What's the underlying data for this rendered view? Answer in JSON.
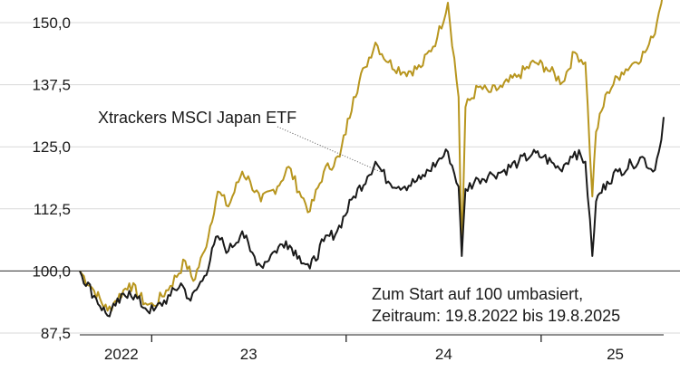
{
  "chart_data": {
    "type": "line",
    "title": "",
    "xlabel": "",
    "ylabel": "",
    "ylim": [
      87.5,
      152.0
    ],
    "xlim": [
      "2022-08-19",
      "2025-08-19"
    ],
    "y_ticks": [
      "150,0",
      "137,5",
      "125,0",
      "112,5",
      "100,0",
      "87,5"
    ],
    "x_ticks": [
      "2022",
      "23",
      "24",
      "25"
    ],
    "baseline": 100,
    "grid": "horizontal",
    "annotations": {
      "series_label": "Xtrackers MSCI Japan ETF",
      "note_line1": "Zum Start auf 100 umbasiert,",
      "note_line2": "Zeitraum: 19.8.2022 bis 19.8.2025"
    },
    "series": [
      {
        "name": "Xtrackers MSCI Japan ETF",
        "color": "#1a1a1a",
        "x": [
          "2022-08-19",
          "2022-09-15",
          "2022-10-10",
          "2022-10-25",
          "2022-11-20",
          "2022-12-20",
          "2023-01-05",
          "2023-02-05",
          "2023-02-25",
          "2023-03-15",
          "2023-04-10",
          "2023-05-05",
          "2023-05-25",
          "2023-06-20",
          "2023-07-05",
          "2023-07-25",
          "2023-08-20",
          "2023-09-10",
          "2023-10-05",
          "2023-10-25",
          "2023-11-20",
          "2023-12-15",
          "2024-01-15",
          "2024-02-10",
          "2024-02-25",
          "2024-03-20",
          "2024-04-20",
          "2024-05-20",
          "2024-06-20",
          "2024-07-10",
          "2024-07-30",
          "2024-08-05",
          "2024-08-12",
          "2024-09-05",
          "2024-10-01",
          "2024-10-20",
          "2024-11-20",
          "2024-12-15",
          "2025-01-05",
          "2025-02-05",
          "2025-03-05",
          "2025-03-25",
          "2025-04-07",
          "2025-04-14",
          "2025-05-05",
          "2025-05-25",
          "2025-06-20",
          "2025-07-10",
          "2025-07-30",
          "2025-08-10",
          "2025-08-19"
        ],
        "values": [
          100.0,
          95.0,
          91.0,
          93.0,
          96.0,
          92.5,
          92.0,
          95.0,
          97.5,
          94.0,
          99.0,
          107.0,
          104.0,
          108.0,
          104.0,
          101.0,
          104.0,
          106.0,
          103.0,
          100.5,
          106.0,
          108.0,
          115.0,
          119.0,
          122.0,
          118.0,
          117.0,
          118.5,
          122.0,
          124.0,
          117.0,
          103.0,
          116.5,
          118.5,
          119.5,
          120.0,
          122.0,
          123.5,
          123.0,
          120.5,
          124.0,
          122.0,
          103.0,
          114.0,
          118.0,
          120.0,
          121.5,
          123.0,
          120.0,
          124.0,
          131.0
        ]
      },
      {
        "name": "",
        "color": "#b8961f",
        "x": [
          "2022-08-19",
          "2022-09-15",
          "2022-10-10",
          "2022-10-25",
          "2022-11-20",
          "2022-12-20",
          "2023-01-05",
          "2023-02-05",
          "2023-03-05",
          "2023-03-20",
          "2023-04-10",
          "2023-05-05",
          "2023-05-25",
          "2023-06-20",
          "2023-07-05",
          "2023-07-25",
          "2023-08-25",
          "2023-09-15",
          "2023-10-05",
          "2023-10-25",
          "2023-11-20",
          "2023-12-20",
          "2024-01-15",
          "2024-02-05",
          "2024-02-25",
          "2024-03-20",
          "2024-04-20",
          "2024-05-20",
          "2024-06-20",
          "2024-07-10",
          "2024-07-30",
          "2024-08-05",
          "2024-08-12",
          "2024-09-05",
          "2024-09-25",
          "2024-10-20",
          "2024-11-20",
          "2024-12-20",
          "2025-01-10",
          "2025-02-10",
          "2025-03-05",
          "2025-03-25",
          "2025-04-07",
          "2025-04-14",
          "2025-05-05",
          "2025-06-01",
          "2025-06-25",
          "2025-07-15",
          "2025-07-30",
          "2025-08-10",
          "2025-08-19"
        ],
        "values": [
          100.0,
          96.0,
          92.0,
          94.0,
          97.5,
          93.5,
          93.0,
          97.0,
          102.0,
          98.0,
          104.0,
          116.0,
          113.0,
          120.0,
          118.0,
          114.0,
          117.0,
          121.0,
          116.0,
          112.0,
          120.0,
          123.0,
          135.0,
          141.0,
          146.0,
          142.0,
          140.0,
          141.0,
          147.0,
          154.0,
          135.0,
          104.0,
          133.0,
          137.0,
          136.0,
          137.0,
          139.5,
          142.0,
          141.0,
          138.0,
          144.0,
          142.0,
          115.0,
          128.0,
          136.0,
          140.0,
          142.0,
          144.0,
          147.0,
          152.0,
          157.0
        ]
      }
    ]
  }
}
